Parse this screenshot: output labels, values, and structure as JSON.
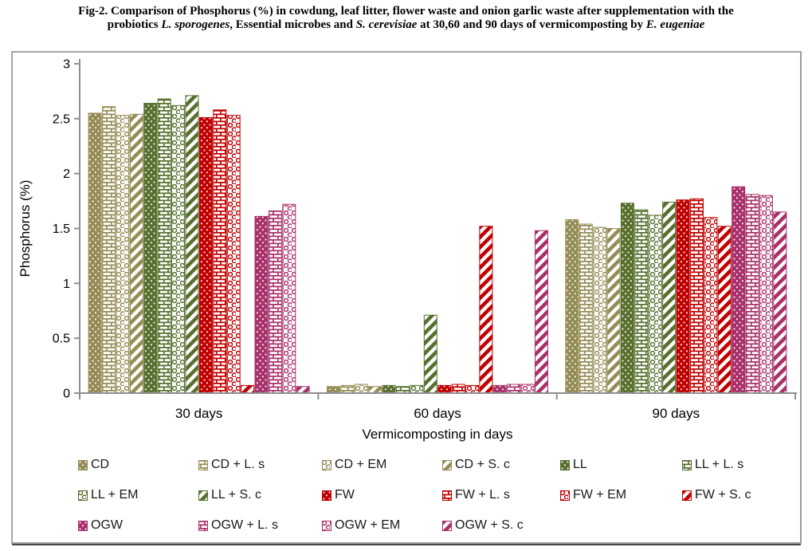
{
  "figure": {
    "title_line1": [
      {
        "text": "Fig-2. Comparison of Phosphorus (%) in cowdung, leaf litter, flower waste and onion garlic waste after supplementation with the",
        "italic": false
      }
    ],
    "title_line2": [
      {
        "text": "probiotics ",
        "italic": false
      },
      {
        "text": "L. sporogenes",
        "italic": true
      },
      {
        "text": ", Essential microbes and ",
        "italic": false
      },
      {
        "text": "S. cerevisiae",
        "italic": true
      },
      {
        "text": " at 30,60 and 90 days of vermicomposting by ",
        "italic": false
      },
      {
        "text": "E. eugeniae",
        "italic": true
      }
    ]
  },
  "chart_data": {
    "type": "bar",
    "title": "Fig-2. Comparison of Phosphorus (%) in cowdung, leaf litter, flower waste and onion garlic waste after supplementation with the probiotics L. sporogenes, Essential microbes and S. cerevisiae at 30,60 and 90 days of vermicomposting by E. eugeniae",
    "xlabel": "Vermicomposting in days",
    "ylabel": "Phosphorus (%)",
    "ylim": [
      0,
      3
    ],
    "yticks": [
      0,
      0.5,
      1,
      1.5,
      2,
      2.5,
      3
    ],
    "ytick_labels": [
      "0",
      "0.5",
      "1",
      "1.5",
      "2",
      "2.5",
      "3"
    ],
    "categories": [
      "30 days",
      "60 days",
      "90 days"
    ],
    "grid": false,
    "legend_position": "bottom",
    "series": [
      {
        "name": "CD",
        "color": "#958C55",
        "pattern": "dots",
        "values": [
          2.55,
          0.06,
          1.58
        ]
      },
      {
        "name": "CD + L. s",
        "color": "#958C55",
        "pattern": "brick",
        "values": [
          2.61,
          0.07,
          1.54
        ]
      },
      {
        "name": "CD + EM",
        "color": "#958C55",
        "pattern": "rings",
        "values": [
          2.53,
          0.08,
          1.51
        ]
      },
      {
        "name": "CD + S. c",
        "color": "#958C55",
        "pattern": "diag",
        "values": [
          2.54,
          0.06,
          1.5
        ]
      },
      {
        "name": "LL",
        "color": "#57702E",
        "pattern": "dots",
        "values": [
          2.64,
          0.07,
          1.73
        ]
      },
      {
        "name": "LL + L. s",
        "color": "#57702E",
        "pattern": "brick",
        "values": [
          2.68,
          0.06,
          1.67
        ]
      },
      {
        "name": "LL + EM",
        "color": "#57702E",
        "pattern": "rings",
        "values": [
          2.62,
          0.07,
          1.62
        ]
      },
      {
        "name": "LL + S. c",
        "color": "#57702E",
        "pattern": "diag",
        "values": [
          2.71,
          0.71,
          1.74
        ]
      },
      {
        "name": "FW",
        "color": "#C00000",
        "pattern": "dots",
        "values": [
          2.51,
          0.07,
          1.76
        ]
      },
      {
        "name": "FW + L. s",
        "color": "#C00000",
        "pattern": "brick",
        "values": [
          2.58,
          0.08,
          1.77
        ]
      },
      {
        "name": "FW + EM",
        "color": "#C00000",
        "pattern": "rings",
        "values": [
          2.53,
          0.07,
          1.6
        ]
      },
      {
        "name": "FW + S. c",
        "color": "#C00000",
        "pattern": "diag",
        "values": [
          0.07,
          1.52,
          1.52
        ]
      },
      {
        "name": "OGW",
        "color": "#A8316B",
        "pattern": "dots",
        "values": [
          1.61,
          0.07,
          1.88
        ]
      },
      {
        "name": "OGW + L. s",
        "color": "#A8316B",
        "pattern": "brick",
        "values": [
          1.66,
          0.08,
          1.81
        ]
      },
      {
        "name": "OGW + EM",
        "color": "#A8316B",
        "pattern": "rings",
        "values": [
          1.72,
          0.08,
          1.8
        ]
      },
      {
        "name": "OGW + S. c",
        "color": "#A8316B",
        "pattern": "diag",
        "values": [
          0.06,
          1.48,
          1.65
        ]
      }
    ]
  },
  "style": {
    "axis_color": "#8f8f8f",
    "text_color": "#000000",
    "frame_border_color": "#9c9c9c"
  }
}
